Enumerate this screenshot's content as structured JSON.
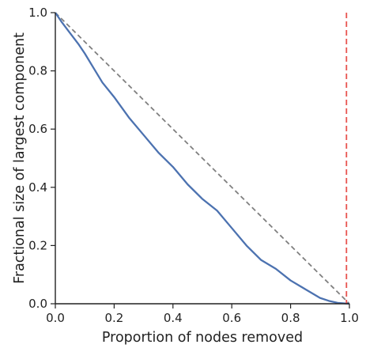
{
  "chart_data": {
    "type": "line",
    "title": "",
    "xlabel": "Proportion of nodes removed",
    "ylabel": "Fractional size of largest component",
    "xlim": [
      0.0,
      1.0
    ],
    "ylim": [
      0.0,
      1.0
    ],
    "xticks": [
      0.0,
      0.2,
      0.4,
      0.6,
      0.8,
      1.0
    ],
    "yticks": [
      0.0,
      0.2,
      0.4,
      0.6,
      0.8,
      1.0
    ],
    "xtick_labels": [
      "0.0",
      "0.2",
      "0.4",
      "0.6",
      "0.8",
      "1.0"
    ],
    "ytick_labels": [
      "0.0",
      "0.2",
      "0.4",
      "0.6",
      "0.8",
      "1.0"
    ],
    "grid": false,
    "legend": "none",
    "series": [
      {
        "color": "#4c72b0",
        "style": "solid",
        "x": [
          0.0,
          0.02,
          0.05,
          0.08,
          0.1,
          0.13,
          0.16,
          0.2,
          0.25,
          0.3,
          0.35,
          0.4,
          0.45,
          0.5,
          0.55,
          0.6,
          0.65,
          0.7,
          0.75,
          0.8,
          0.85,
          0.9,
          0.93,
          0.96,
          1.0
        ],
        "y": [
          1.0,
          0.97,
          0.93,
          0.89,
          0.86,
          0.81,
          0.76,
          0.71,
          0.64,
          0.58,
          0.52,
          0.47,
          0.41,
          0.36,
          0.32,
          0.26,
          0.2,
          0.15,
          0.12,
          0.08,
          0.05,
          0.02,
          0.01,
          0.003,
          0.0
        ]
      },
      {
        "color": "#808080",
        "style": "dashed",
        "x": [
          0.0,
          1.0
        ],
        "y": [
          1.0,
          0.0
        ]
      }
    ],
    "annotations": [
      {
        "type": "vertical-line",
        "x": 0.99,
        "color": "#e8534f",
        "style": "dashed"
      }
    ]
  }
}
